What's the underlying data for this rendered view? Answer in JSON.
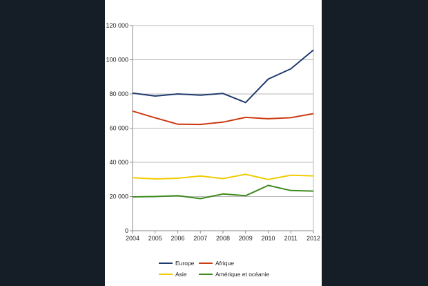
{
  "chart_data": {
    "type": "line",
    "categories": [
      "2004",
      "2005",
      "2006",
      "2007",
      "2008",
      "2009",
      "2010",
      "2011",
      "2012"
    ],
    "ylim": [
      0,
      120000
    ],
    "y_ticks": [
      {
        "value": 0,
        "label": "0"
      },
      {
        "value": 20000,
        "label": "20 000"
      },
      {
        "value": 40000,
        "label": "40 000"
      },
      {
        "value": 60000,
        "label": "60 000"
      },
      {
        "value": 80000,
        "label": "80 000"
      },
      {
        "value": 100000,
        "label": "100 000"
      },
      {
        "value": 120000,
        "label": "120 000"
      }
    ],
    "grid": true,
    "legend_position": "bottom",
    "series": [
      {
        "name": "Europe",
        "color": "#1f3a6e",
        "values": [
          80500,
          78800,
          80000,
          79300,
          80300,
          75000,
          88700,
          94700,
          105700
        ]
      },
      {
        "name": "Afrique",
        "color": "#cc3a12",
        "values": [
          70000,
          66000,
          62300,
          62200,
          63500,
          66300,
          65500,
          66100,
          68500
        ]
      },
      {
        "name": "Asie",
        "color": "#f0cc00",
        "values": [
          31000,
          30300,
          30700,
          32000,
          30500,
          33000,
          30000,
          32500,
          32100
        ]
      },
      {
        "name": "Amérique et océanie",
        "color": "#3f8a1e",
        "values": [
          19800,
          20000,
          20500,
          18800,
          21500,
          20500,
          26500,
          23500,
          23200
        ]
      }
    ]
  }
}
